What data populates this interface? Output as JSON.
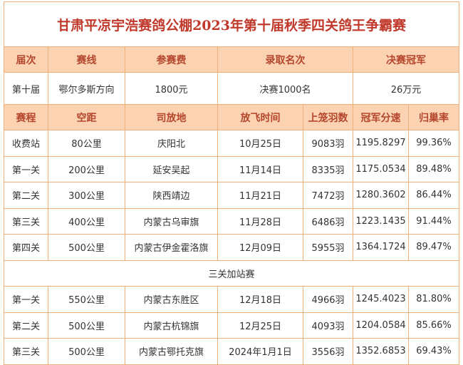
{
  "title": "甘肃平凉宇浩赛鸽公棚2023年第十届秋季四关鸽王争霸赛",
  "info": {
    "headers": [
      "届次",
      "赛线",
      "参赛费",
      "录取名次",
      "决赛冠军"
    ],
    "row": [
      "第十届",
      "鄂尔多斯方向",
      "1800元",
      "决赛1000名",
      "26万元"
    ]
  },
  "table": {
    "headers": [
      "赛程",
      "空距",
      "司放地",
      "放飞时间",
      "上笼羽数",
      "冠军分速",
      "归巢率"
    ],
    "rows": [
      [
        "收费站",
        "80公里",
        "庆阳北",
        "10月25日",
        "9083羽",
        "1195.8297",
        "99.36%"
      ],
      [
        "第一关",
        "200公里",
        "延安吴起",
        "11月14日",
        "8335羽",
        "1175.0534",
        "89.48%"
      ],
      [
        "第二关",
        "300公里",
        "陕西靖边",
        "11月21日",
        "7472羽",
        "1280.3602",
        "86.44%"
      ],
      [
        "第三关",
        "400公里",
        "内蒙古乌审旗",
        "11月28日",
        "6486羽",
        "1223.1435",
        "91.44%"
      ],
      [
        "第四关",
        "500公里",
        "内蒙古伊金霍洛旗",
        "12月09日",
        "5955羽",
        "1364.1724",
        "89.47%"
      ]
    ]
  },
  "extra": {
    "label": "三关加站赛",
    "rows": [
      [
        "第一关",
        "550公里",
        "内蒙古东胜区",
        "12月18日",
        "4966羽",
        "1245.4023",
        "81.80%"
      ],
      [
        "第二关",
        "500公里",
        "内蒙古杭锦旗",
        "12月25日",
        "4093羽",
        "1204.0584",
        "85.66%"
      ],
      [
        "第三关",
        "500公里",
        "内蒙古鄂托克旗",
        "2024年1月1日",
        "3556羽",
        "1352.6853",
        "69.43%"
      ]
    ]
  }
}
